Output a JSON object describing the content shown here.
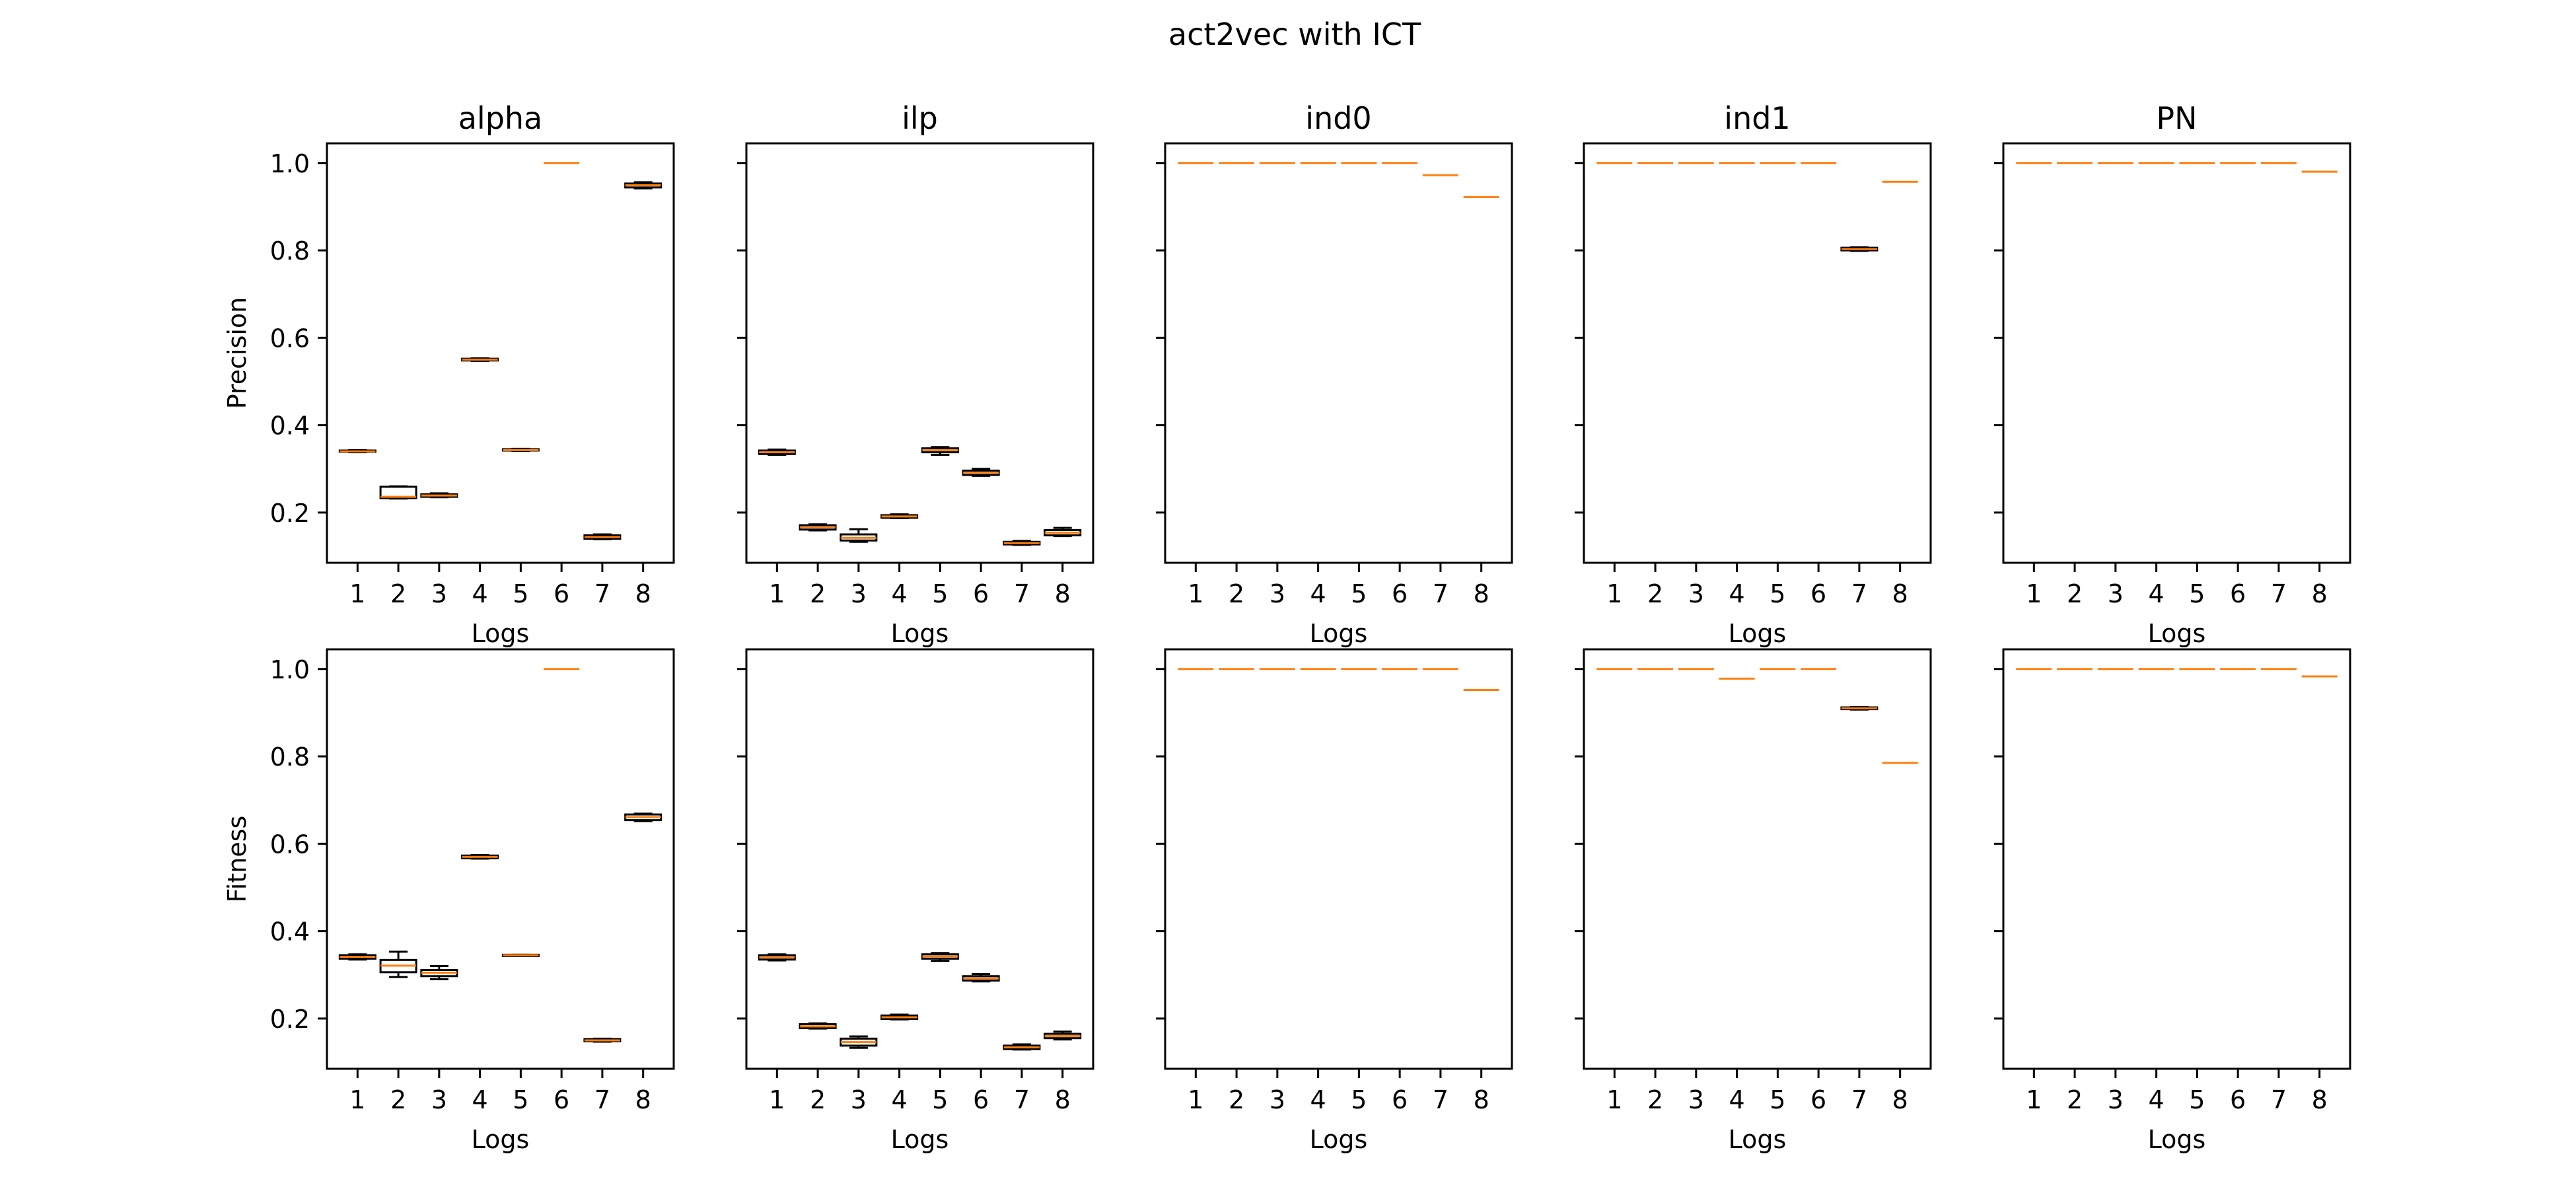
{
  "figure": {
    "title": "act2vec with ICT"
  },
  "colors": {
    "median": "#ff7f0e",
    "box": "#000000",
    "frame": "#000000",
    "background": "#ffffff"
  },
  "chart_data": {
    "type": "boxplot",
    "title": "act2vec with ICT",
    "grid": false,
    "shared_y": true,
    "ylim": [
      0.085,
      1.045
    ],
    "yticks": [
      "0.2",
      "0.4",
      "0.6",
      "0.8",
      "1.0"
    ],
    "categories": [
      "1",
      "2",
      "3",
      "4",
      "5",
      "6",
      "7",
      "8"
    ],
    "columns": [
      "alpha",
      "ilp",
      "ind0",
      "ind1",
      "PN"
    ],
    "xlabel": "Logs",
    "rows": [
      {
        "ylabel": "Precision",
        "panels": [
          {
            "title": "alpha",
            "boxes": [
              {
                "whislo": 0.338,
                "q1": 0.339,
                "med": 0.34,
                "q3": 0.342,
                "whishi": 0.343
              },
              {
                "whislo": 0.232,
                "q1": 0.233,
                "med": 0.236,
                "q3": 0.259,
                "whishi": 0.26
              },
              {
                "whislo": 0.235,
                "q1": 0.236,
                "med": 0.239,
                "q3": 0.242,
                "whishi": 0.244
              },
              {
                "whislo": 0.547,
                "q1": 0.548,
                "med": 0.55,
                "q3": 0.552,
                "whishi": 0.553
              },
              {
                "whislo": 0.341,
                "q1": 0.342,
                "med": 0.343,
                "q3": 0.345,
                "whishi": 0.346
              },
              {
                "whislo": 1.0,
                "q1": 1.0,
                "med": 1.0,
                "q3": 1.0,
                "whishi": 1.0
              },
              {
                "whislo": 0.139,
                "q1": 0.14,
                "med": 0.144,
                "q3": 0.148,
                "whishi": 0.15
              },
              {
                "whislo": 0.942,
                "q1": 0.944,
                "med": 0.949,
                "q3": 0.953,
                "whishi": 0.956
              }
            ]
          },
          {
            "title": "ilp",
            "boxes": [
              {
                "whislo": 0.332,
                "q1": 0.334,
                "med": 0.338,
                "q3": 0.342,
                "whishi": 0.344
              },
              {
                "whislo": 0.159,
                "q1": 0.161,
                "med": 0.166,
                "q3": 0.171,
                "whishi": 0.173
              },
              {
                "whislo": 0.133,
                "q1": 0.136,
                "med": 0.142,
                "q3": 0.15,
                "whishi": 0.162
              },
              {
                "whislo": 0.187,
                "q1": 0.188,
                "med": 0.191,
                "q3": 0.194,
                "whishi": 0.196
              },
              {
                "whislo": 0.332,
                "q1": 0.338,
                "med": 0.343,
                "q3": 0.347,
                "whishi": 0.35
              },
              {
                "whislo": 0.284,
                "q1": 0.286,
                "med": 0.291,
                "q3": 0.296,
                "whishi": 0.3
              },
              {
                "whislo": 0.126,
                "q1": 0.127,
                "med": 0.13,
                "q3": 0.133,
                "whishi": 0.135
              },
              {
                "whislo": 0.146,
                "q1": 0.148,
                "med": 0.154,
                "q3": 0.16,
                "whishi": 0.165
              }
            ]
          },
          {
            "title": "ind0",
            "boxes": [
              {
                "whislo": 1.0,
                "q1": 1.0,
                "med": 1.0,
                "q3": 1.0,
                "whishi": 1.0
              },
              {
                "whislo": 1.0,
                "q1": 1.0,
                "med": 1.0,
                "q3": 1.0,
                "whishi": 1.0
              },
              {
                "whislo": 1.0,
                "q1": 1.0,
                "med": 1.0,
                "q3": 1.0,
                "whishi": 1.0
              },
              {
                "whislo": 1.0,
                "q1": 1.0,
                "med": 1.0,
                "q3": 1.0,
                "whishi": 1.0
              },
              {
                "whislo": 1.0,
                "q1": 1.0,
                "med": 1.0,
                "q3": 1.0,
                "whishi": 1.0
              },
              {
                "whislo": 1.0,
                "q1": 1.0,
                "med": 1.0,
                "q3": 1.0,
                "whishi": 1.0
              },
              {
                "whislo": 0.972,
                "q1": 0.972,
                "med": 0.972,
                "q3": 0.972,
                "whishi": 0.972
              },
              {
                "whislo": 0.922,
                "q1": 0.922,
                "med": 0.922,
                "q3": 0.922,
                "whishi": 0.922
              }
            ]
          },
          {
            "title": "ind1",
            "boxes": [
              {
                "whislo": 1.0,
                "q1": 1.0,
                "med": 1.0,
                "q3": 1.0,
                "whishi": 1.0
              },
              {
                "whislo": 1.0,
                "q1": 1.0,
                "med": 1.0,
                "q3": 1.0,
                "whishi": 1.0
              },
              {
                "whislo": 1.0,
                "q1": 1.0,
                "med": 1.0,
                "q3": 1.0,
                "whishi": 1.0
              },
              {
                "whislo": 1.0,
                "q1": 1.0,
                "med": 1.0,
                "q3": 1.0,
                "whishi": 1.0
              },
              {
                "whislo": 1.0,
                "q1": 1.0,
                "med": 1.0,
                "q3": 1.0,
                "whishi": 1.0
              },
              {
                "whislo": 1.0,
                "q1": 1.0,
                "med": 1.0,
                "q3": 1.0,
                "whishi": 1.0
              },
              {
                "whislo": 0.799,
                "q1": 0.8,
                "med": 0.803,
                "q3": 0.806,
                "whishi": 0.807
              },
              {
                "whislo": 0.957,
                "q1": 0.957,
                "med": 0.957,
                "q3": 0.957,
                "whishi": 0.957
              }
            ]
          },
          {
            "title": "PN",
            "boxes": [
              {
                "whislo": 1.0,
                "q1": 1.0,
                "med": 1.0,
                "q3": 1.0,
                "whishi": 1.0
              },
              {
                "whislo": 1.0,
                "q1": 1.0,
                "med": 1.0,
                "q3": 1.0,
                "whishi": 1.0
              },
              {
                "whislo": 1.0,
                "q1": 1.0,
                "med": 1.0,
                "q3": 1.0,
                "whishi": 1.0
              },
              {
                "whislo": 1.0,
                "q1": 1.0,
                "med": 1.0,
                "q3": 1.0,
                "whishi": 1.0
              },
              {
                "whislo": 1.0,
                "q1": 1.0,
                "med": 1.0,
                "q3": 1.0,
                "whishi": 1.0
              },
              {
                "whislo": 1.0,
                "q1": 1.0,
                "med": 1.0,
                "q3": 1.0,
                "whishi": 1.0
              },
              {
                "whislo": 1.0,
                "q1": 1.0,
                "med": 1.0,
                "q3": 1.0,
                "whishi": 1.0
              },
              {
                "whislo": 0.98,
                "q1": 0.98,
                "med": 0.98,
                "q3": 0.98,
                "whishi": 0.98
              }
            ]
          }
        ]
      },
      {
        "ylabel": "Fitness",
        "panels": [
          {
            "title": "alpha",
            "boxes": [
              {
                "whislo": 0.335,
                "q1": 0.337,
                "med": 0.341,
                "q3": 0.345,
                "whishi": 0.347
              },
              {
                "whislo": 0.295,
                "q1": 0.306,
                "med": 0.321,
                "q3": 0.334,
                "whishi": 0.353
              },
              {
                "whislo": 0.29,
                "q1": 0.297,
                "med": 0.305,
                "q3": 0.311,
                "whishi": 0.32
              },
              {
                "whislo": 0.566,
                "q1": 0.567,
                "med": 0.57,
                "q3": 0.573,
                "whishi": 0.574
              },
              {
                "whislo": 0.344,
                "q1": 0.344,
                "med": 0.345,
                "q3": 0.346,
                "whishi": 0.346
              },
              {
                "whislo": 1.0,
                "q1": 1.0,
                "med": 1.0,
                "q3": 1.0,
                "whishi": 1.0
              },
              {
                "whislo": 0.147,
                "q1": 0.148,
                "med": 0.15,
                "q3": 0.153,
                "whishi": 0.154
              },
              {
                "whislo": 0.652,
                "q1": 0.654,
                "med": 0.661,
                "q3": 0.667,
                "whishi": 0.669
              }
            ]
          },
          {
            "title": "ilp",
            "boxes": [
              {
                "whislo": 0.333,
                "q1": 0.335,
                "med": 0.34,
                "q3": 0.345,
                "whishi": 0.347
              },
              {
                "whislo": 0.177,
                "q1": 0.178,
                "med": 0.182,
                "q3": 0.187,
                "whishi": 0.189
              },
              {
                "whislo": 0.133,
                "q1": 0.138,
                "med": 0.146,
                "q3": 0.154,
                "whishi": 0.159
              },
              {
                "whislo": 0.198,
                "q1": 0.199,
                "med": 0.203,
                "q3": 0.207,
                "whishi": 0.209
              },
              {
                "whislo": 0.332,
                "q1": 0.337,
                "med": 0.342,
                "q3": 0.347,
                "whishi": 0.35
              },
              {
                "whislo": 0.285,
                "q1": 0.287,
                "med": 0.292,
                "q3": 0.297,
                "whishi": 0.302
              },
              {
                "whislo": 0.129,
                "q1": 0.13,
                "med": 0.134,
                "q3": 0.138,
                "whishi": 0.141
              },
              {
                "whislo": 0.152,
                "q1": 0.155,
                "med": 0.16,
                "q3": 0.165,
                "whishi": 0.17
              }
            ]
          },
          {
            "title": "ind0",
            "boxes": [
              {
                "whislo": 1.0,
                "q1": 1.0,
                "med": 1.0,
                "q3": 1.0,
                "whishi": 1.0
              },
              {
                "whislo": 1.0,
                "q1": 1.0,
                "med": 1.0,
                "q3": 1.0,
                "whishi": 1.0
              },
              {
                "whislo": 1.0,
                "q1": 1.0,
                "med": 1.0,
                "q3": 1.0,
                "whishi": 1.0
              },
              {
                "whislo": 1.0,
                "q1": 1.0,
                "med": 1.0,
                "q3": 1.0,
                "whishi": 1.0
              },
              {
                "whislo": 1.0,
                "q1": 1.0,
                "med": 1.0,
                "q3": 1.0,
                "whishi": 1.0
              },
              {
                "whislo": 1.0,
                "q1": 1.0,
                "med": 1.0,
                "q3": 1.0,
                "whishi": 1.0
              },
              {
                "whislo": 1.0,
                "q1": 1.0,
                "med": 1.0,
                "q3": 1.0,
                "whishi": 1.0
              },
              {
                "whislo": 0.952,
                "q1": 0.952,
                "med": 0.952,
                "q3": 0.952,
                "whishi": 0.952
              }
            ]
          },
          {
            "title": "ind1",
            "boxes": [
              {
                "whislo": 1.0,
                "q1": 1.0,
                "med": 1.0,
                "q3": 1.0,
                "whishi": 1.0
              },
              {
                "whislo": 1.0,
                "q1": 1.0,
                "med": 1.0,
                "q3": 1.0,
                "whishi": 1.0
              },
              {
                "whislo": 1.0,
                "q1": 1.0,
                "med": 1.0,
                "q3": 1.0,
                "whishi": 1.0
              },
              {
                "whislo": 0.978,
                "q1": 0.978,
                "med": 0.978,
                "q3": 0.978,
                "whishi": 0.978
              },
              {
                "whislo": 1.0,
                "q1": 1.0,
                "med": 1.0,
                "q3": 1.0,
                "whishi": 1.0
              },
              {
                "whislo": 1.0,
                "q1": 1.0,
                "med": 1.0,
                "q3": 1.0,
                "whishi": 1.0
              },
              {
                "whislo": 0.907,
                "q1": 0.908,
                "med": 0.91,
                "q3": 0.912,
                "whishi": 0.913
              },
              {
                "whislo": 0.785,
                "q1": 0.785,
                "med": 0.785,
                "q3": 0.785,
                "whishi": 0.785
              }
            ]
          },
          {
            "title": "PN",
            "boxes": [
              {
                "whislo": 1.0,
                "q1": 1.0,
                "med": 1.0,
                "q3": 1.0,
                "whishi": 1.0
              },
              {
                "whislo": 1.0,
                "q1": 1.0,
                "med": 1.0,
                "q3": 1.0,
                "whishi": 1.0
              },
              {
                "whislo": 1.0,
                "q1": 1.0,
                "med": 1.0,
                "q3": 1.0,
                "whishi": 1.0
              },
              {
                "whislo": 1.0,
                "q1": 1.0,
                "med": 1.0,
                "q3": 1.0,
                "whishi": 1.0
              },
              {
                "whislo": 1.0,
                "q1": 1.0,
                "med": 1.0,
                "q3": 1.0,
                "whishi": 1.0
              },
              {
                "whislo": 1.0,
                "q1": 1.0,
                "med": 1.0,
                "q3": 1.0,
                "whishi": 1.0
              },
              {
                "whislo": 1.0,
                "q1": 1.0,
                "med": 1.0,
                "q3": 1.0,
                "whishi": 1.0
              },
              {
                "whislo": 0.983,
                "q1": 0.983,
                "med": 0.983,
                "q3": 0.983,
                "whishi": 0.983
              }
            ]
          }
        ]
      }
    ]
  }
}
